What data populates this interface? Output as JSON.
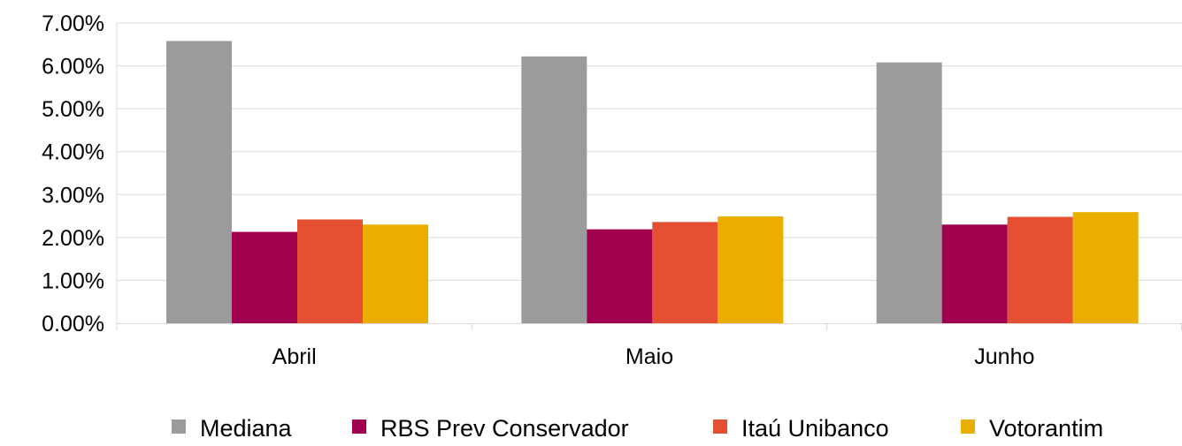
{
  "chart_data": {
    "type": "bar",
    "title": "",
    "xlabel": "",
    "ylabel": "",
    "categories": [
      "Abril",
      "Maio",
      "Junho"
    ],
    "series": [
      {
        "name": "Mediana",
        "color": "#9b9b9b",
        "values": [
          6.58,
          6.22,
          6.08
        ]
      },
      {
        "name": "RBS Prev Conservador",
        "color": "#a0004d",
        "values": [
          2.13,
          2.19,
          2.3
        ]
      },
      {
        "name": "Itaú Unibanco",
        "color": "#e55032",
        "values": [
          2.42,
          2.36,
          2.48
        ]
      },
      {
        "name": "Votorantim",
        "color": "#e9ae00",
        "values": [
          2.3,
          2.49,
          2.59
        ]
      }
    ],
    "ylim": [
      0,
      7
    ],
    "yticks": [
      0,
      1,
      2,
      3,
      4,
      5,
      6,
      7
    ],
    "ytick_labels": [
      "0.00%",
      "1.00%",
      "2.00%",
      "3.00%",
      "4.00%",
      "5.00%",
      "6.00%",
      "7.00%"
    ],
    "grid": true,
    "legend_position": "bottom"
  }
}
